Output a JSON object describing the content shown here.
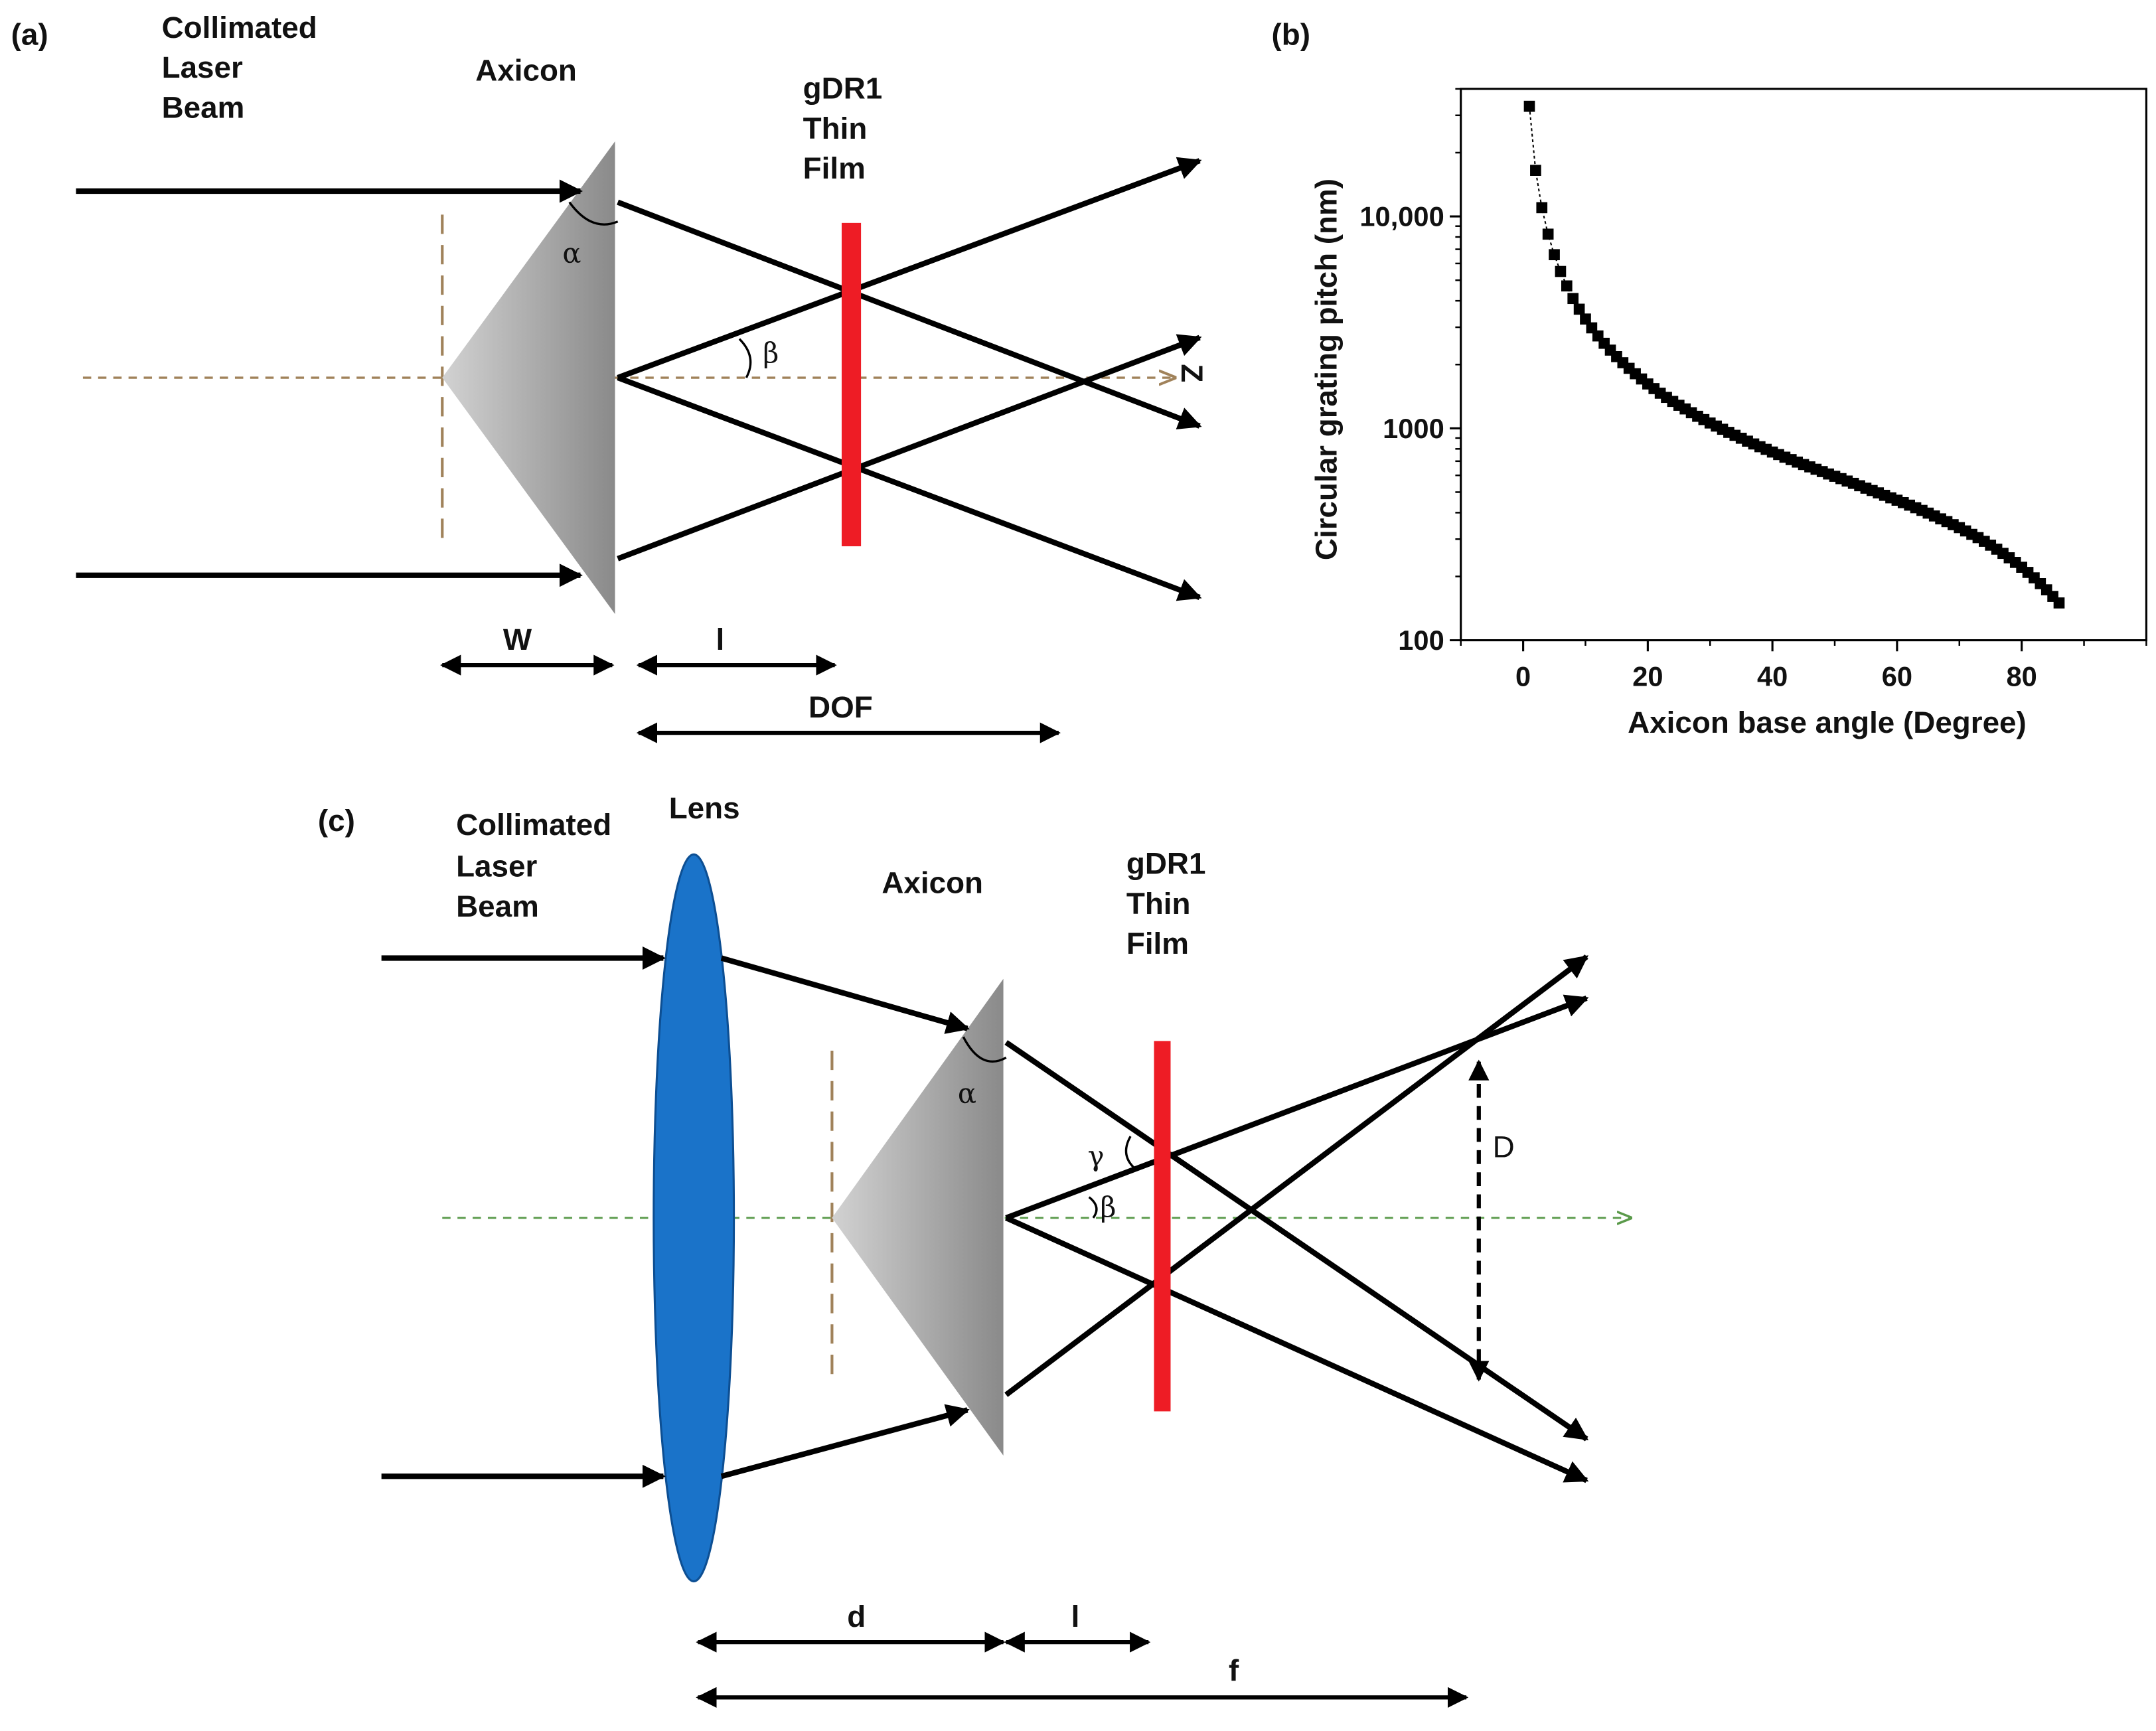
{
  "panel_a": {
    "tag": "(a)",
    "source_label": [
      "Collimated",
      "Laser",
      "Beam"
    ],
    "axicon_label": "Axicon",
    "film_label": [
      "gDR1",
      "Thin",
      "Film"
    ],
    "alpha": "α",
    "beta": "β",
    "axis_label": "Z",
    "dim_w": "W",
    "dim_l": "l",
    "dim_dof": "DOF"
  },
  "panel_b": {
    "tag": "(b)"
  },
  "panel_c": {
    "tag": "(c)",
    "source_label": [
      "Collimated",
      "Laser",
      "Beam"
    ],
    "lens_label": "Lens",
    "axicon_label": "Axicon",
    "film_label": [
      "gDR1",
      "Thin",
      "Film"
    ],
    "alpha": "α",
    "beta": "β",
    "gamma": "γ",
    "dim_D": "D",
    "dim_d": "d",
    "dim_l": "l",
    "dim_f": "f"
  },
  "colors": {
    "ray": "#000000",
    "axicon_light": "#d2d2d2",
    "axicon_dark": "#8a8a8a",
    "film": "#ee1c25",
    "lens": "#1a73c9",
    "axis_a": "#a0825a",
    "axis_c": "#5a9a4a"
  },
  "chart_data": {
    "type": "scatter",
    "xlabel": "Axicon base angle (Degree)",
    "ylabel": "Circular grating pitch (nm)",
    "xlim": [
      -10,
      100
    ],
    "ylim": [
      100,
      40000
    ],
    "yscale": "log",
    "xticks": [
      0,
      20,
      40,
      60,
      80
    ],
    "yticks": [
      100,
      1000,
      10000
    ],
    "ytick_labels": [
      "100",
      "1000",
      "10,000"
    ],
    "marker": "square",
    "connect_points": "dotted",
    "series": [
      {
        "x": [
          1,
          2,
          3,
          4,
          5,
          6,
          7,
          8,
          9,
          10,
          11,
          12,
          13,
          14,
          15,
          16,
          17,
          18,
          19,
          20,
          21,
          22,
          23,
          24,
          25,
          26,
          27,
          28,
          29,
          30,
          31,
          32,
          33,
          34,
          35,
          36,
          37,
          38,
          39,
          40,
          41,
          42,
          43,
          44,
          45,
          46,
          47,
          48,
          49,
          50,
          51,
          52,
          53,
          54,
          55,
          56,
          57,
          58,
          59,
          60,
          61,
          62,
          63,
          64,
          65,
          66,
          67,
          68,
          69,
          70,
          71,
          72,
          73,
          74,
          75,
          76,
          77,
          78,
          79,
          80,
          81,
          82,
          83,
          84,
          85,
          86
        ],
        "y": [
          33100,
          16500,
          11000,
          8250,
          6600,
          5500,
          4700,
          4100,
          3650,
          3280,
          2980,
          2730,
          2520,
          2340,
          2180,
          2040,
          1920,
          1810,
          1710,
          1620,
          1540,
          1465,
          1400,
          1340,
          1285,
          1235,
          1185,
          1140,
          1100,
          1060,
          1025,
          990,
          957,
          927,
          898,
          870,
          844,
          819,
          796,
          773,
          752,
          731,
          712,
          693,
          675,
          658,
          641,
          625,
          609,
          594,
          579,
          564,
          550,
          536,
          522,
          509,
          496,
          483,
          470,
          458,
          446,
          434,
          422,
          410,
          398,
          386,
          374,
          363,
          351,
          340,
          328,
          316,
          305,
          293,
          281,
          269,
          257,
          245,
          233,
          221,
          209,
          197,
          185,
          173,
          161,
          150
        ]
      }
    ]
  }
}
